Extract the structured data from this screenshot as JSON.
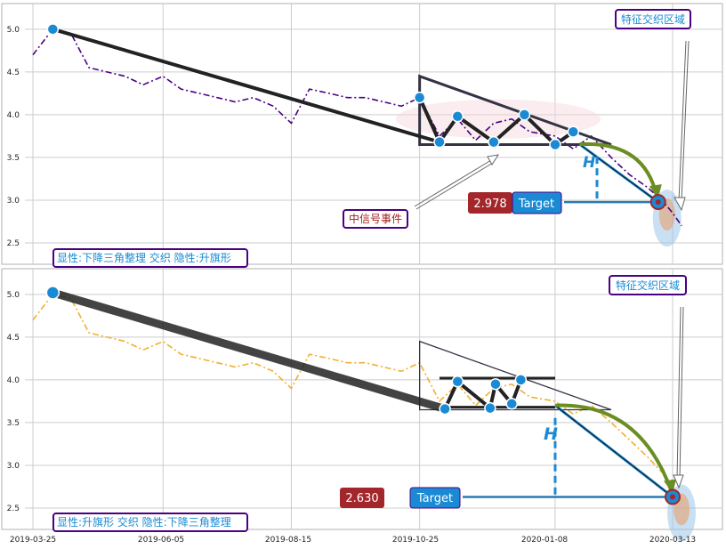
{
  "colors": {
    "panel_border": "#b0b0b0",
    "grid": "#cccccc",
    "top_series": "#4b0082",
    "bottom_series": "#f0b030",
    "pattern_line": "#222222",
    "marker": "#1a8ad4",
    "label_border": "#4b0082",
    "label_text": "#1a8ad4",
    "event_text": "#a02020",
    "price_box": "#a3262a",
    "target_box": "#1a8ad4",
    "arrow_green": "#6b8e23",
    "h_line": "#1a8ad4"
  },
  "chart_data": [
    {
      "type": "line",
      "panel": "top",
      "x_ticks": [
        "2019-03-25",
        "2019-06-05",
        "2019-08-15",
        "2019-10-25",
        "2020-01-08",
        "2020-03-13"
      ],
      "y_ticks": [
        "2.5",
        "3.0",
        "3.5",
        "4.0",
        "4.5",
        "5.0"
      ],
      "ylim": [
        2.25,
        5.3
      ],
      "series_color": "#4b0082",
      "series_style": "dash-dot",
      "x": [
        "2019-03-25",
        "2019-04-05",
        "2019-04-15",
        "2019-04-25",
        "2019-05-05",
        "2019-05-15",
        "2019-05-25",
        "2019-06-05",
        "2019-06-15",
        "2019-06-25",
        "2019-07-05",
        "2019-07-15",
        "2019-07-25",
        "2019-08-05",
        "2019-08-15",
        "2019-08-25",
        "2019-09-05",
        "2019-09-15",
        "2019-09-25",
        "2019-10-05",
        "2019-10-15",
        "2019-10-25",
        "2019-11-05",
        "2019-11-15",
        "2019-11-25",
        "2019-12-05",
        "2019-12-15",
        "2019-12-25",
        "2020-01-08",
        "2020-01-18",
        "2020-01-28",
        "2020-02-08",
        "2020-02-18",
        "2020-02-28",
        "2020-03-08",
        "2020-03-13",
        "2020-03-18"
      ],
      "values": [
        4.7,
        5.0,
        4.95,
        4.55,
        4.5,
        4.45,
        4.35,
        4.45,
        4.3,
        4.25,
        4.2,
        4.15,
        4.2,
        4.1,
        3.9,
        4.3,
        4.25,
        4.2,
        4.2,
        4.15,
        4.1,
        4.2,
        3.75,
        3.95,
        3.7,
        3.9,
        3.95,
        3.8,
        3.75,
        3.6,
        3.75,
        3.5,
        3.3,
        3.15,
        2.98,
        2.85,
        2.7
      ],
      "overlays": {
        "trend_start": {
          "x": "2019-04-05",
          "y": 5.0
        },
        "triangle": {
          "x0": "2019-10-25",
          "x1": "2020-02-08",
          "top": 4.45,
          "bottom": 3.65
        },
        "zigzag": [
          {
            "x": "2019-10-25",
            "y": 4.2
          },
          {
            "x": "2019-11-05",
            "y": 3.68
          },
          {
            "x": "2019-11-15",
            "y": 3.98
          },
          {
            "x": "2019-12-05",
            "y": 3.68
          },
          {
            "x": "2019-12-22",
            "y": 4.0
          },
          {
            "x": "2020-01-08",
            "y": 3.65
          },
          {
            "x": "2020-01-18",
            "y": 3.8
          }
        ],
        "target_point": {
          "x": "2020-03-05",
          "y": 2.978
        }
      },
      "labels": {
        "feature_zone": "特征交织区域",
        "event": "中信号事件",
        "price": "2.978",
        "target": "Target",
        "h_label": "H",
        "caption": "显性:下降三角整理 交织 隐性:升旗形"
      }
    },
    {
      "type": "line",
      "panel": "bottom",
      "x_ticks": [
        "2019-03-25",
        "2019-06-05",
        "2019-08-15",
        "2019-10-25",
        "2020-01-08",
        "2020-03-13"
      ],
      "y_ticks": [
        "2.5",
        "3.0",
        "3.5",
        "4.0",
        "4.5",
        "5.0"
      ],
      "ylim": [
        2.25,
        5.3
      ],
      "series_color": "#f0b030",
      "series_style": "dash-dot",
      "x": [
        "2019-03-25",
        "2019-04-05",
        "2019-04-15",
        "2019-04-25",
        "2019-05-05",
        "2019-05-15",
        "2019-05-25",
        "2019-06-05",
        "2019-06-15",
        "2019-06-25",
        "2019-07-05",
        "2019-07-15",
        "2019-07-25",
        "2019-08-05",
        "2019-08-15",
        "2019-08-25",
        "2019-09-05",
        "2019-09-15",
        "2019-09-25",
        "2019-10-05",
        "2019-10-15",
        "2019-10-25",
        "2019-11-05",
        "2019-11-15",
        "2019-11-25",
        "2019-12-05",
        "2019-12-15",
        "2019-12-25",
        "2020-01-08",
        "2020-01-18",
        "2020-01-28",
        "2020-02-08",
        "2020-02-18",
        "2020-02-28",
        "2020-03-08",
        "2020-03-13",
        "2020-03-18"
      ],
      "values": [
        4.7,
        5.0,
        4.95,
        4.55,
        4.5,
        4.45,
        4.35,
        4.45,
        4.3,
        4.25,
        4.2,
        4.15,
        4.2,
        4.1,
        3.9,
        4.3,
        4.25,
        4.2,
        4.2,
        4.15,
        4.1,
        4.2,
        3.75,
        3.95,
        3.7,
        3.9,
        3.95,
        3.8,
        3.75,
        3.6,
        3.7,
        3.5,
        3.3,
        3.1,
        2.9,
        2.75,
        2.6
      ],
      "overlays": {
        "trend_start": {
          "x": "2019-04-05",
          "y": 5.02
        },
        "triangle": {
          "x0": "2019-10-25",
          "x1": "2020-02-08",
          "top": 4.45,
          "bottom": 3.65
        },
        "flag": {
          "x0": "2019-11-05",
          "x1": "2020-01-08",
          "top": 4.02,
          "bottom": 3.68
        },
        "zigzag": [
          {
            "x": "2019-11-08",
            "y": 3.66
          },
          {
            "x": "2019-11-15",
            "y": 3.98
          },
          {
            "x": "2019-12-03",
            "y": 3.67
          },
          {
            "x": "2019-12-06",
            "y": 3.95
          },
          {
            "x": "2019-12-15",
            "y": 3.72
          },
          {
            "x": "2019-12-20",
            "y": 4.0
          }
        ],
        "target_point": {
          "x": "2020-03-13",
          "y": 2.63
        }
      },
      "labels": {
        "feature_zone": "特征交织区域",
        "price": "2.630",
        "target": "Target",
        "h_label": "H",
        "caption": "显性:升旗形 交织 隐性:下降三角整理"
      }
    }
  ]
}
